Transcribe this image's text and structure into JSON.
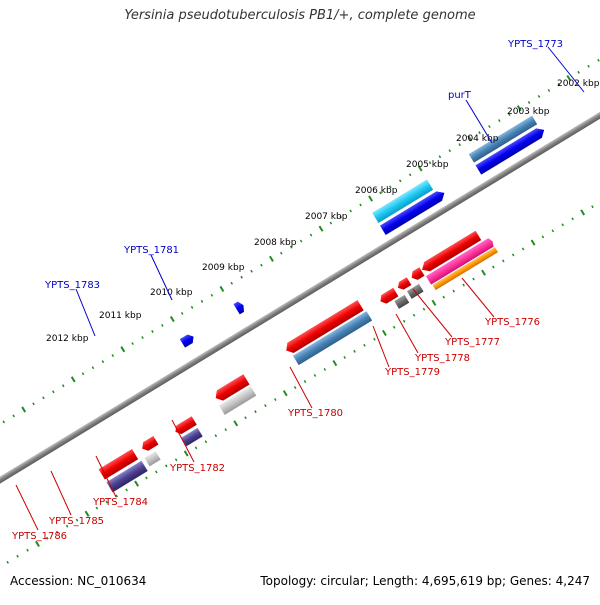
{
  "title": "Yersinia pseudotuberculosis PB1/+, complete genome",
  "footer": {
    "accession": "Accession: NC_010634",
    "summary": "Topology: circular; Length: 4,695,619 bp; Genes: 4,247"
  },
  "colors": {
    "backbone": "#8a8a8a",
    "forward_label": "#0000cc",
    "reverse_label": "#cc0000",
    "tick": "#228B22"
  },
  "kbp_labels": [
    "2002 kbp",
    "2003 kbp",
    "2004 kbp",
    "2005 kbp",
    "2006 kbp",
    "2007 kbp",
    "2008 kbp",
    "2009 kbp",
    "2010 kbp",
    "2011 kbp",
    "2012 kbp"
  ],
  "forward_genes": [
    "YPTS_1773",
    "purT",
    "YPTS_1781",
    "YPTS_1783"
  ],
  "reverse_genes": [
    "YPTS_1776",
    "YPTS_1777",
    "YPTS_1778",
    "YPTS_1779",
    "YPTS_1780",
    "YPTS_1782",
    "YPTS_1784",
    "YPTS_1785",
    "YPTS_1786"
  ]
}
